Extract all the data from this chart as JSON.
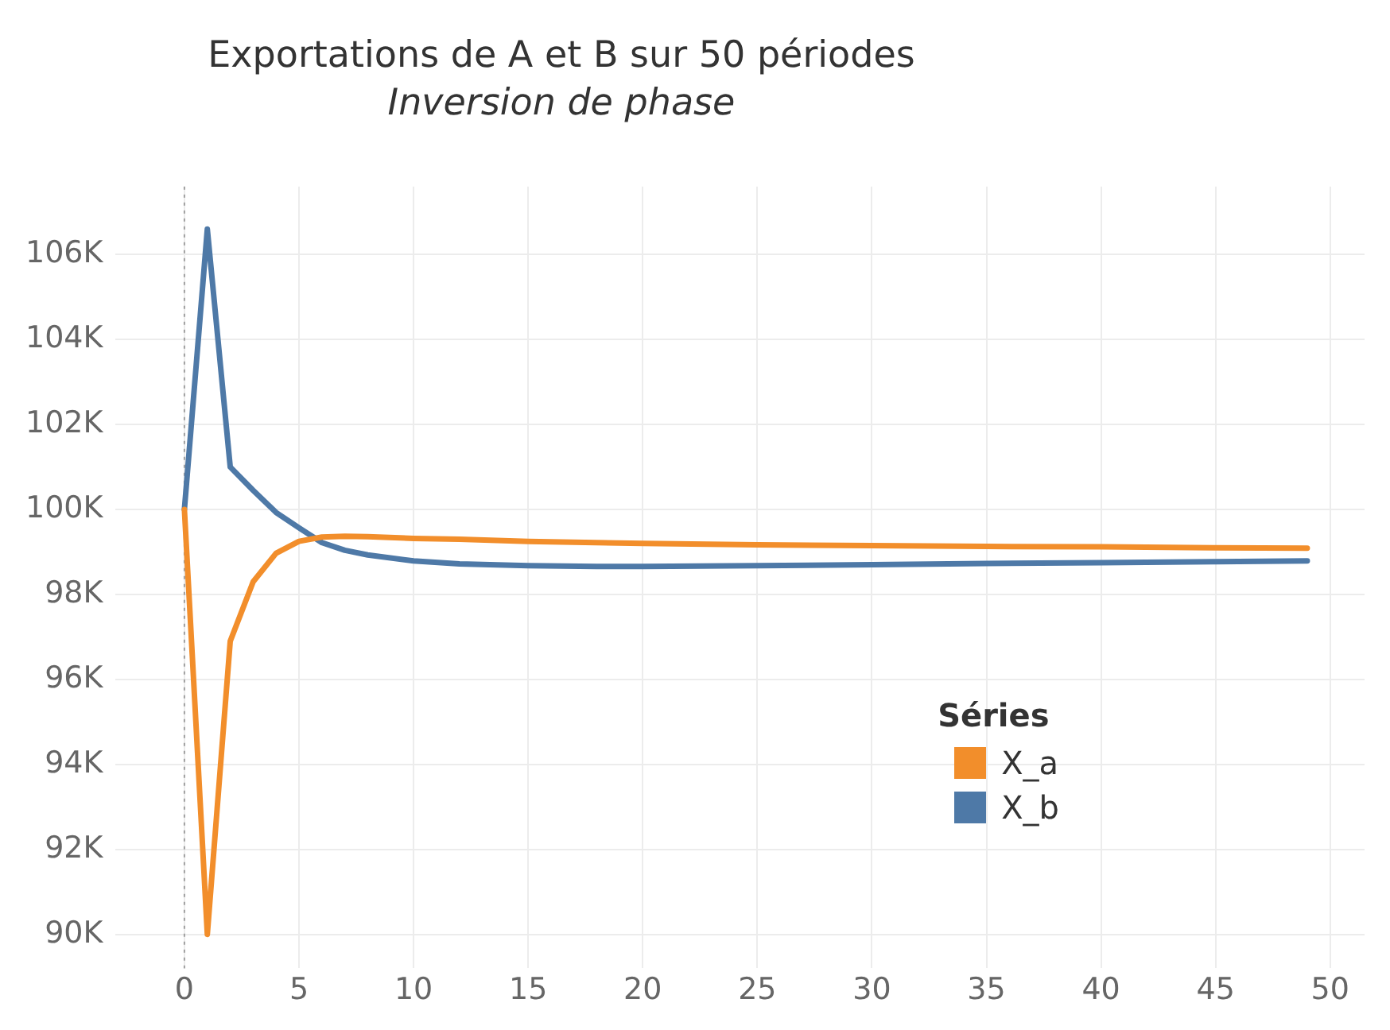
{
  "chart_data": {
    "type": "line",
    "title": "Exportations de A et B sur 50 périodes",
    "subtitle": "Inversion de phase",
    "legend_title": "Séries",
    "legend": "right",
    "series": [
      {
        "name": "X_a",
        "color": "#f28e2b",
        "x": [
          0,
          1,
          2,
          3,
          4,
          5,
          6,
          7,
          8,
          10,
          12,
          15,
          20,
          25,
          30,
          35,
          40,
          45,
          49
        ],
        "values": [
          100000,
          90000,
          96900,
          98300,
          98970,
          99250,
          99350,
          99370,
          99360,
          99320,
          99300,
          99250,
          99200,
          99170,
          99150,
          99130,
          99120,
          99100,
          99090
        ]
      },
      {
        "name": "X_b",
        "color": "#4e79a7",
        "x": [
          0,
          1,
          2,
          3,
          4,
          5,
          6,
          7,
          8,
          10,
          12,
          15,
          18,
          20,
          25,
          30,
          35,
          40,
          45,
          49
        ],
        "values": [
          100000,
          106600,
          101000,
          100450,
          99930,
          99570,
          99220,
          99040,
          98930,
          98790,
          98720,
          98680,
          98660,
          98660,
          98680,
          98700,
          98730,
          98750,
          98770,
          98790
        ]
      }
    ],
    "xlim": [
      -3,
      51.5
    ],
    "xticks": [
      0,
      5,
      10,
      15,
      20,
      25,
      30,
      35,
      40,
      45,
      50
    ],
    "ylim": [
      89200,
      107600
    ],
    "yticks": [
      {
        "value": 90000,
        "label": "90K"
      },
      {
        "value": 92000,
        "label": "92K"
      },
      {
        "value": 94000,
        "label": "94K"
      },
      {
        "value": 96000,
        "label": "96K"
      },
      {
        "value": 98000,
        "label": "98K"
      },
      {
        "value": 100000,
        "label": "100K"
      },
      {
        "value": 102000,
        "label": "102K"
      },
      {
        "value": 104000,
        "label": "104K"
      },
      {
        "value": 106000,
        "label": "106K"
      }
    ],
    "grid": true,
    "marker": "none",
    "line_style": "solid",
    "ref_lines": [
      {
        "axis": "x",
        "value": 0,
        "color": "#a0a0a0",
        "line_style": "dotted"
      }
    ]
  }
}
